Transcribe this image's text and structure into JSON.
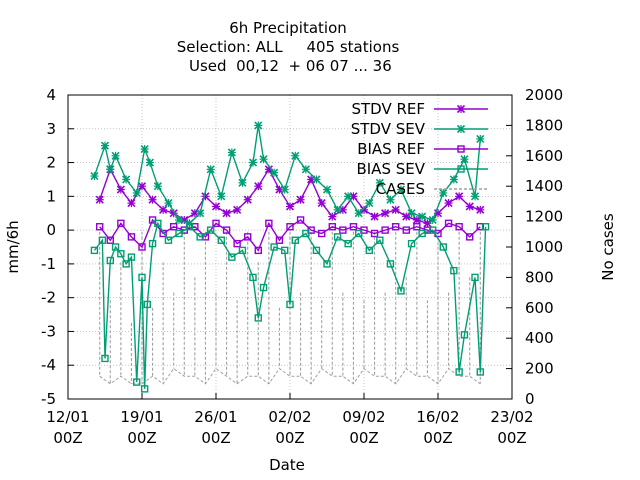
{
  "chart_data": {
    "type": "line",
    "title_lines": [
      "6h Precipitation",
      "Selection: ALL     405 stations",
      " Used  00,12  + 06 07 ... 36"
    ],
    "xlabel": "Date",
    "ylabel": "mm/6h",
    "y2label": "No cases",
    "xlim": [
      "2024-01-12T00:00",
      "2024-02-23T00:00"
    ],
    "ylim": [
      -5,
      4
    ],
    "y2lim": [
      0,
      2000
    ],
    "x_ticks": [
      {
        "at": "2024-01-12T00:00",
        "l1": "12/01",
        "l2": "00Z"
      },
      {
        "at": "2024-01-19T00:00",
        "l1": "19/01",
        "l2": "00Z"
      },
      {
        "at": "2024-01-26T00:00",
        "l1": "26/01",
        "l2": "00Z"
      },
      {
        "at": "2024-02-02T00:00",
        "l1": "02/02",
        "l2": "00Z"
      },
      {
        "at": "2024-02-09T00:00",
        "l1": "09/02",
        "l2": "00Z"
      },
      {
        "at": "2024-02-16T00:00",
        "l1": "16/02",
        "l2": "00Z"
      },
      {
        "at": "2024-02-23T00:00",
        "l1": "23/02",
        "l2": "00Z"
      }
    ],
    "y_ticks": [
      "4",
      "3",
      "2",
      "1",
      "0",
      "-1",
      "-2",
      "-3",
      "-4",
      "-5"
    ],
    "y2_ticks": [
      "2000",
      "1800",
      "1600",
      "1400",
      "1200",
      "1000",
      "800",
      "600",
      "400",
      "200",
      "0"
    ],
    "grid": true,
    "legend_position": "top-right",
    "series": [
      {
        "name": "STDV REF",
        "color": "#9400d3",
        "marker": "x",
        "axis": "y",
        "x": [
          "2024-01-15T00:00",
          "2024-01-16T00:00",
          "2024-01-17T00:00",
          "2024-01-18T00:00",
          "2024-01-19T00:00",
          "2024-01-20T00:00",
          "2024-01-21T00:00",
          "2024-01-22T00:00",
          "2024-01-23T00:00",
          "2024-01-24T00:00",
          "2024-01-25T00:00",
          "2024-01-26T00:00",
          "2024-01-27T00:00",
          "2024-01-28T00:00",
          "2024-01-29T00:00",
          "2024-01-30T00:00",
          "2024-01-31T00:00",
          "2024-02-01T00:00",
          "2024-02-02T00:00",
          "2024-02-03T00:00",
          "2024-02-04T00:00",
          "2024-02-05T00:00",
          "2024-02-06T00:00",
          "2024-02-07T00:00",
          "2024-02-08T00:00",
          "2024-02-09T00:00",
          "2024-02-10T00:00",
          "2024-02-11T00:00",
          "2024-02-12T00:00",
          "2024-02-13T00:00",
          "2024-02-14T00:00",
          "2024-02-15T00:00",
          "2024-02-16T00:00",
          "2024-02-17T00:00",
          "2024-02-18T00:00",
          "2024-02-19T00:00",
          "2024-02-20T00:00"
        ],
        "values": [
          0.9,
          1.8,
          1.2,
          0.8,
          1.3,
          0.9,
          0.6,
          0.5,
          0.3,
          0.5,
          1.0,
          0.7,
          0.5,
          0.6,
          0.9,
          1.3,
          1.8,
          1.2,
          0.7,
          0.9,
          1.5,
          0.8,
          0.4,
          0.6,
          1.0,
          0.6,
          0.4,
          0.5,
          0.6,
          0.4,
          0.3,
          0.2,
          0.5,
          0.8,
          1.0,
          0.7,
          0.6
        ]
      },
      {
        "name": "STDV SEV",
        "color": "#009e73",
        "marker": "x",
        "axis": "y",
        "x": [
          "2024-01-14T12:00",
          "2024-01-15T12:00",
          "2024-01-16T00:00",
          "2024-01-16T12:00",
          "2024-01-17T12:00",
          "2024-01-18T12:00",
          "2024-01-19T06:00",
          "2024-01-19T18:00",
          "2024-01-20T12:00",
          "2024-01-21T12:00",
          "2024-01-22T12:00",
          "2024-01-23T12:00",
          "2024-01-24T12:00",
          "2024-01-25T12:00",
          "2024-01-26T12:00",
          "2024-01-27T12:00",
          "2024-01-28T12:00",
          "2024-01-29T12:00",
          "2024-01-30T00:00",
          "2024-01-30T12:00",
          "2024-01-31T12:00",
          "2024-02-01T12:00",
          "2024-02-02T12:00",
          "2024-02-03T12:00",
          "2024-02-04T12:00",
          "2024-02-05T12:00",
          "2024-02-06T12:00",
          "2024-02-07T12:00",
          "2024-02-08T12:00",
          "2024-02-09T12:00",
          "2024-02-10T12:00",
          "2024-02-11T12:00",
          "2024-02-12T12:00",
          "2024-02-13T12:00",
          "2024-02-14T12:00",
          "2024-02-15T12:00",
          "2024-02-16T12:00",
          "2024-02-17T12:00",
          "2024-02-18T12:00",
          "2024-02-19T12:00",
          "2024-02-20T00:00"
        ],
        "values": [
          1.6,
          2.5,
          1.8,
          2.2,
          1.5,
          1.1,
          2.4,
          2.0,
          1.3,
          0.8,
          0.3,
          0.2,
          0.5,
          1.8,
          1.0,
          2.3,
          1.4,
          2.0,
          3.1,
          2.1,
          1.7,
          1.2,
          2.2,
          1.8,
          1.5,
          1.2,
          0.6,
          1.0,
          0.5,
          0.8,
          1.4,
          0.9,
          1.2,
          0.5,
          0.4,
          0.3,
          1.1,
          1.5,
          2.1,
          1.0,
          2.7
        ]
      },
      {
        "name": "BIAS REF",
        "color": "#9400d3",
        "marker": "square",
        "axis": "y",
        "x": [
          "2024-01-15T00:00",
          "2024-01-16T00:00",
          "2024-01-17T00:00",
          "2024-01-18T00:00",
          "2024-01-19T00:00",
          "2024-01-20T00:00",
          "2024-01-21T00:00",
          "2024-01-22T00:00",
          "2024-01-23T00:00",
          "2024-01-24T00:00",
          "2024-01-25T00:00",
          "2024-01-26T00:00",
          "2024-01-27T00:00",
          "2024-01-28T00:00",
          "2024-01-29T00:00",
          "2024-01-30T00:00",
          "2024-01-31T00:00",
          "2024-02-01T00:00",
          "2024-02-02T00:00",
          "2024-02-03T00:00",
          "2024-02-04T00:00",
          "2024-02-05T00:00",
          "2024-02-06T00:00",
          "2024-02-07T00:00",
          "2024-02-08T00:00",
          "2024-02-09T00:00",
          "2024-02-10T00:00",
          "2024-02-11T00:00",
          "2024-02-12T00:00",
          "2024-02-13T00:00",
          "2024-02-14T00:00",
          "2024-02-15T00:00",
          "2024-02-16T00:00",
          "2024-02-17T00:00",
          "2024-02-18T00:00",
          "2024-02-19T00:00",
          "2024-02-20T00:00"
        ],
        "values": [
          0.1,
          -0.3,
          0.2,
          -0.2,
          -0.5,
          0.3,
          -0.1,
          0.1,
          0.0,
          0.1,
          -0.2,
          0.2,
          0.0,
          -0.4,
          -0.2,
          -0.6,
          0.2,
          -0.3,
          0.1,
          0.3,
          0.0,
          -0.1,
          0.1,
          0.0,
          0.1,
          0.0,
          -0.1,
          0.0,
          0.1,
          0.0,
          0.1,
          0.0,
          -0.1,
          0.2,
          0.1,
          -0.2,
          0.1
        ]
      },
      {
        "name": "BIAS SEV",
        "color": "#009e73",
        "marker": "square",
        "axis": "y",
        "x": [
          "2024-01-14T12:00",
          "2024-01-15T06:00",
          "2024-01-15T12:00",
          "2024-01-16T00:00",
          "2024-01-16T12:00",
          "2024-01-17T00:00",
          "2024-01-17T12:00",
          "2024-01-18T00:00",
          "2024-01-18T12:00",
          "2024-01-19T00:00",
          "2024-01-19T06:00",
          "2024-01-19T12:00",
          "2024-01-20T00:00",
          "2024-01-20T12:00",
          "2024-01-21T12:00",
          "2024-01-22T12:00",
          "2024-01-23T12:00",
          "2024-01-24T12:00",
          "2024-01-25T12:00",
          "2024-01-26T12:00",
          "2024-01-27T12:00",
          "2024-01-28T12:00",
          "2024-01-29T12:00",
          "2024-01-30T00:00",
          "2024-01-30T12:00",
          "2024-01-31T12:00",
          "2024-02-01T12:00",
          "2024-02-02T00:00",
          "2024-02-02T12:00",
          "2024-02-03T12:00",
          "2024-02-04T12:00",
          "2024-02-05T12:00",
          "2024-02-06T12:00",
          "2024-02-07T12:00",
          "2024-02-08T12:00",
          "2024-02-09T12:00",
          "2024-02-10T12:00",
          "2024-02-11T12:00",
          "2024-02-12T12:00",
          "2024-02-13T12:00",
          "2024-02-14T12:00",
          "2024-02-15T12:00",
          "2024-02-16T12:00",
          "2024-02-17T12:00",
          "2024-02-18T00:00",
          "2024-02-18T12:00",
          "2024-02-19T12:00",
          "2024-02-20T00:00",
          "2024-02-20T12:00"
        ],
        "values": [
          -0.6,
          -0.3,
          -3.8,
          -0.9,
          -0.5,
          -0.7,
          -1.0,
          -0.8,
          -4.5,
          -1.4,
          -4.7,
          -2.2,
          -0.4,
          0.2,
          -0.3,
          -0.1,
          0.1,
          -0.2,
          0.0,
          -0.3,
          -0.8,
          -0.6,
          -1.4,
          -2.6,
          -1.7,
          -0.5,
          -0.6,
          -2.2,
          -0.3,
          -0.1,
          -0.6,
          -1.0,
          -0.2,
          -0.4,
          -0.1,
          -0.6,
          -0.3,
          -1.0,
          -1.8,
          -0.4,
          -0.1,
          0.0,
          -0.5,
          -1.2,
          -4.2,
          -3.1,
          -1.4,
          -4.2,
          0.1
        ]
      },
      {
        "name": "CASES",
        "color": "#a0a0a0",
        "marker": "none",
        "axis": "y2",
        "dashed": true,
        "x": [
          "2024-01-15T00:00",
          "2024-01-16T00:00",
          "2024-01-17T00:00",
          "2024-01-18T00:00",
          "2024-01-19T00:00",
          "2024-01-20T00:00",
          "2024-01-21T00:00",
          "2024-01-22T00:00",
          "2024-01-23T00:00",
          "2024-01-24T00:00",
          "2024-01-25T00:00",
          "2024-01-26T00:00",
          "2024-01-27T00:00",
          "2024-01-28T00:00",
          "2024-01-29T00:00",
          "2024-01-30T00:00",
          "2024-01-31T00:00",
          "2024-02-01T00:00",
          "2024-02-02T00:00",
          "2024-02-03T00:00",
          "2024-02-04T00:00",
          "2024-02-05T00:00",
          "2024-02-06T00:00",
          "2024-02-07T00:00",
          "2024-02-08T00:00",
          "2024-02-09T00:00",
          "2024-02-10T00:00",
          "2024-02-11T00:00",
          "2024-02-12T00:00",
          "2024-02-13T00:00",
          "2024-02-14T00:00",
          "2024-02-15T00:00",
          "2024-02-16T00:00",
          "2024-02-17T00:00",
          "2024-02-18T00:00",
          "2024-02-19T00:00",
          "2024-02-20T00:00"
        ],
        "values": [
          1100,
          650,
          900,
          500,
          1100,
          600,
          900,
          700,
          1100,
          800,
          1100,
          700,
          1100,
          650,
          1100,
          900,
          1100,
          600,
          1100,
          700,
          1100,
          650,
          1100,
          700,
          1100,
          650,
          1100,
          700,
          1100,
          800,
          1100,
          650,
          1100,
          700,
          1100,
          800,
          1100
        ],
        "min_values": [
          150,
          100,
          150,
          100,
          100,
          150,
          100,
          200,
          150,
          150,
          100,
          200,
          150,
          100,
          150,
          150,
          100,
          200,
          150,
          150,
          100,
          200,
          150,
          150,
          100,
          200,
          150,
          150,
          100,
          200,
          150,
          150,
          100,
          200,
          150,
          150,
          100
        ]
      }
    ]
  }
}
